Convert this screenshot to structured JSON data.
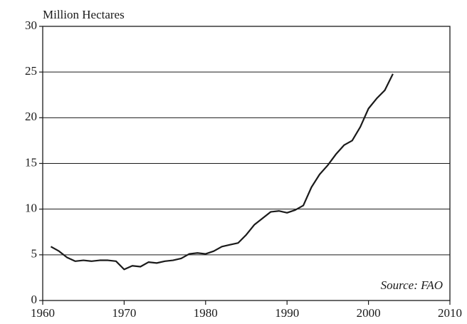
{
  "chart_data": {
    "type": "line",
    "y_label": "Million Hectares",
    "annotation": "Source: FAO",
    "x": [
      1961,
      1962,
      1963,
      1964,
      1965,
      1966,
      1967,
      1968,
      1969,
      1970,
      1971,
      1972,
      1973,
      1974,
      1975,
      1976,
      1977,
      1978,
      1979,
      1980,
      1981,
      1982,
      1983,
      1984,
      1985,
      1986,
      1987,
      1988,
      1989,
      1990,
      1991,
      1992,
      1993,
      1994,
      1995,
      1996,
      1997,
      1998,
      1999,
      2000,
      2001,
      2002,
      2003
    ],
    "series": [
      {
        "color": "#1a1a1a",
        "values": [
          5.9,
          5.4,
          4.7,
          4.3,
          4.4,
          4.3,
          4.4,
          4.4,
          4.3,
          3.4,
          3.8,
          3.7,
          4.2,
          4.1,
          4.3,
          4.4,
          4.6,
          5.1,
          5.2,
          5.1,
          5.4,
          5.9,
          6.1,
          6.3,
          7.2,
          8.3,
          9.0,
          9.7,
          9.8,
          9.6,
          9.9,
          10.4,
          12.4,
          13.8,
          14.8,
          16.0,
          17.0,
          17.5,
          19.0,
          21.0,
          22.1,
          23.0,
          24.8
        ]
      }
    ],
    "xlim": [
      1960,
      2010
    ],
    "xticks": [
      1960,
      1970,
      1980,
      1990,
      2000,
      2010
    ],
    "ylim": [
      0,
      30
    ],
    "yticks": [
      0,
      5,
      10,
      15,
      20,
      25,
      30
    ],
    "grid": true
  }
}
